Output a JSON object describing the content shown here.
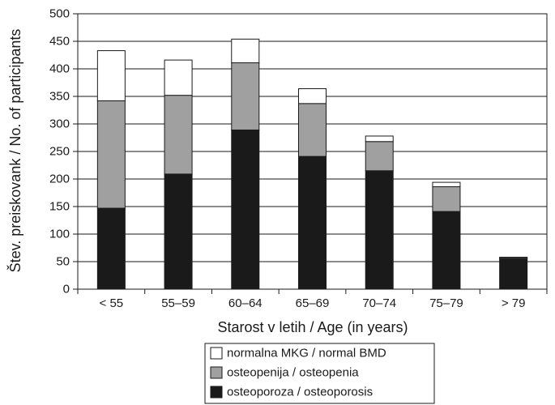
{
  "chart_data": {
    "type": "bar",
    "stacked": true,
    "categories": [
      "< 55",
      "55–59",
      "60–64",
      "65–69",
      "70–74",
      "75–79",
      "> 79"
    ],
    "series": [
      {
        "name": "osteoporoza / osteoporosis",
        "color": "#1a1a1a",
        "values": [
          147,
          209,
          289,
          241,
          215,
          141,
          55
        ]
      },
      {
        "name": "osteopenija / osteopenia",
        "color": "#a0a0a0",
        "values": [
          195,
          143,
          122,
          96,
          53,
          45,
          2
        ]
      },
      {
        "name": "normalna MKG / normal BMD",
        "color": "#ffffff",
        "values": [
          91,
          64,
          43,
          27,
          10,
          8,
          1
        ]
      }
    ],
    "xlabel": "Starost v letih / Age (in years)",
    "ylabel": "Štev. preiskovank / No. of participants",
    "ylim": [
      0,
      500
    ],
    "yticks": [
      0,
      50,
      100,
      150,
      200,
      250,
      300,
      350,
      400,
      450,
      500
    ],
    "grid": true,
    "legend_position": "bottom",
    "legend_order": [
      "normalna MKG / normal BMD",
      "osteopenija / osteopenia",
      "osteoporoza / osteoporosis"
    ]
  }
}
